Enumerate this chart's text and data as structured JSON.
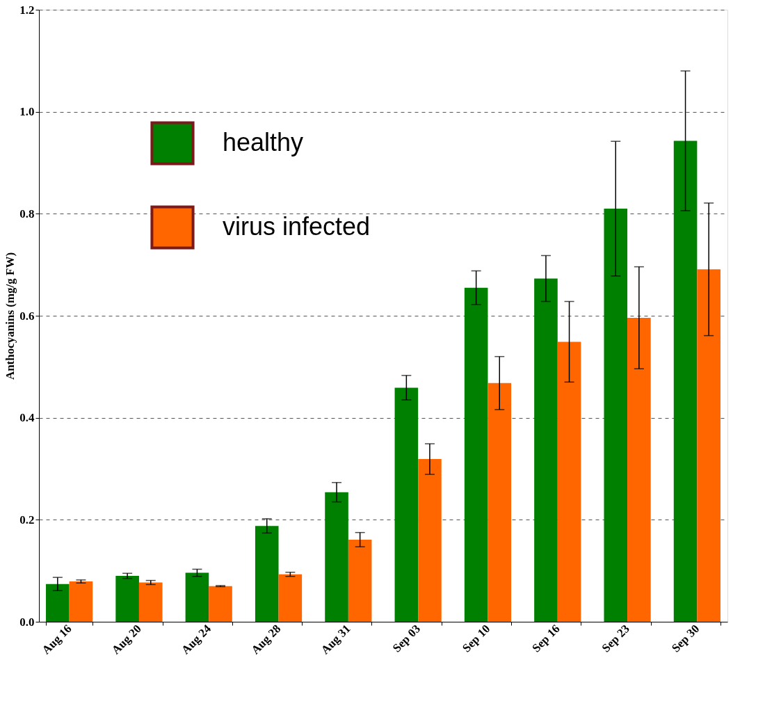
{
  "chart_data": {
    "type": "bar",
    "ylabel": "Anthocyanins (mg/g FW)",
    "categories": [
      "Aug 16",
      "Aug 20",
      "Aug 24",
      "Aug 28",
      "Aug 31",
      "Sep 03",
      "Sep 10",
      "Sep 16",
      "Sep 23",
      "Sep 30"
    ],
    "series": [
      {
        "name": "healthy",
        "color": "#008000",
        "values": [
          0.074,
          0.09,
          0.096,
          0.188,
          0.254,
          0.459,
          0.655,
          0.673,
          0.81,
          0.943
        ],
        "errors": [
          0.013,
          0.005,
          0.007,
          0.014,
          0.019,
          0.024,
          0.033,
          0.045,
          0.132,
          0.137
        ]
      },
      {
        "name": "virus infected",
        "color": "#ff6600",
        "values": [
          0.079,
          0.077,
          0.07,
          0.093,
          0.161,
          0.319,
          0.468,
          0.549,
          0.596,
          0.691
        ],
        "errors": [
          0.003,
          0.004,
          0.001,
          0.004,
          0.014,
          0.03,
          0.052,
          0.079,
          0.1,
          0.13
        ]
      }
    ],
    "ylim": [
      0,
      1.2
    ],
    "yticks": [
      {
        "value": 0,
        "label": "0.0"
      },
      {
        "value": 0.2,
        "label": "0.2"
      },
      {
        "value": 0.4,
        "label": "0.4"
      },
      {
        "value": 0.6,
        "label": "0.6"
      },
      {
        "value": 0.8,
        "label": "0.8"
      },
      {
        "value": 1.0,
        "label": "1.0"
      },
      {
        "value": 1.2,
        "label": "1.2"
      }
    ],
    "grid": "y",
    "legend": "top left"
  }
}
